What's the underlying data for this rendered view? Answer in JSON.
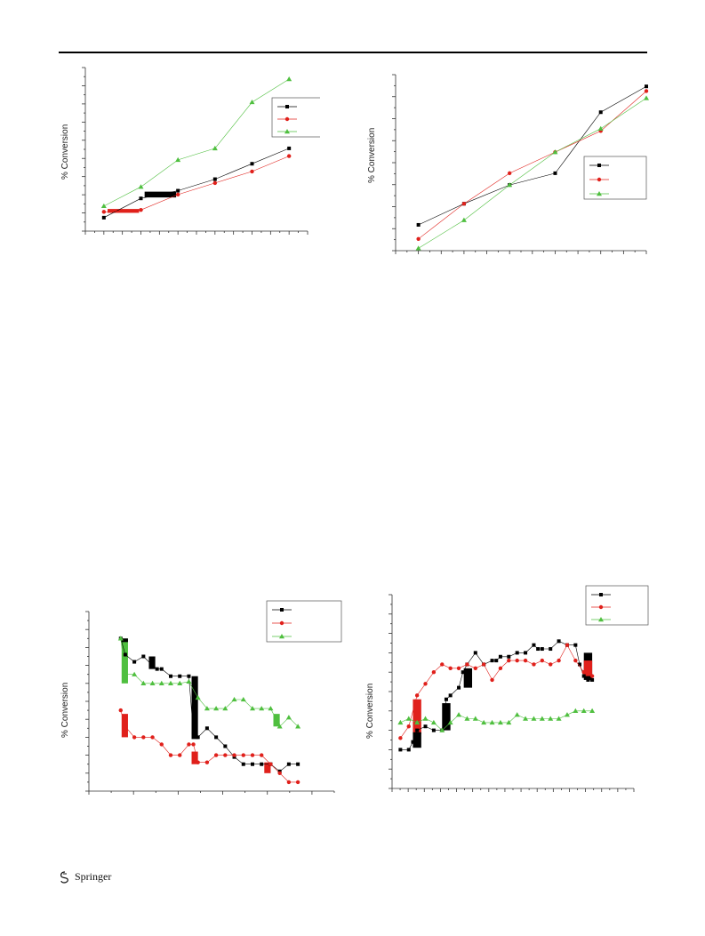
{
  "footer": {
    "publisher": "Springer"
  },
  "chart_data": [
    {
      "type": "line",
      "ylabel": "% Conversion",
      "legend": "top-right",
      "xlim": [
        0,
        6
      ],
      "ylim": [
        0,
        8.5
      ],
      "series": [
        {
          "name": "",
          "color": "#000000",
          "marker": "square",
          "x": [
            0.5,
            1.5,
            2.5,
            3.5,
            4.5,
            5.5
          ],
          "y": [
            0.7,
            1.7,
            2.1,
            2.7,
            3.5,
            4.3
          ]
        },
        {
          "name": "",
          "color": "#e0201b",
          "marker": "circle",
          "x": [
            0.5,
            1.5,
            2.5,
            3.5,
            4.5,
            5.5
          ],
          "y": [
            1.0,
            1.1,
            1.9,
            2.5,
            3.1,
            3.9
          ]
        },
        {
          "name": "",
          "color": "#4fbf3f",
          "marker": "triangle",
          "x": [
            0.5,
            1.5,
            2.5,
            3.5,
            4.5,
            5.5
          ],
          "y": [
            1.3,
            2.3,
            3.7,
            4.3,
            6.7,
            7.9
          ]
        }
      ],
      "bands": [
        {
          "color": "#000000",
          "x0": 1.6,
          "x1": 2.45,
          "y0": 1.75,
          "y1": 2.05
        },
        {
          "color": "#e0201b",
          "x0": 0.6,
          "x1": 1.45,
          "y0": 0.95,
          "y1": 1.15
        }
      ]
    },
    {
      "type": "line",
      "ylabel": "% Conversion",
      "legend": "right",
      "xlim": [
        0,
        5.5
      ],
      "ylim": [
        0,
        7.5
      ],
      "series": [
        {
          "name": "",
          "color": "#000000",
          "marker": "square",
          "x": [
            0.5,
            1.5,
            2.5,
            3.5,
            4.5,
            5.5
          ],
          "y": [
            1.1,
            2.0,
            2.8,
            3.3,
            5.9,
            7.0
          ]
        },
        {
          "name": "",
          "color": "#e0201b",
          "marker": "circle",
          "x": [
            0.5,
            1.5,
            2.5,
            3.5,
            4.5,
            5.5
          ],
          "y": [
            0.5,
            2.0,
            3.3,
            4.2,
            5.1,
            6.8
          ]
        },
        {
          "name": "",
          "color": "#4fbf3f",
          "marker": "triangle",
          "x": [
            0.5,
            1.5,
            2.5,
            3.5,
            4.5,
            5.5
          ],
          "y": [
            0.1,
            1.3,
            2.8,
            4.2,
            5.2,
            6.5
          ]
        }
      ],
      "bands": []
    },
    {
      "type": "line",
      "ylabel": "% Conversion",
      "legend": "top-right",
      "xlim": [
        0,
        27
      ],
      "ylim": [
        0,
        10
      ],
      "series": [
        {
          "name": "",
          "color": "#000000",
          "marker": "square",
          "x": [
            3.5,
            4,
            5,
            6,
            7,
            7.5,
            8,
            9,
            10,
            11,
            11.5,
            12,
            13,
            14,
            15,
            16,
            17,
            18,
            19,
            20,
            21,
            22,
            23
          ],
          "y": [
            8.5,
            7.6,
            7.2,
            7.5,
            7.0,
            6.8,
            6.8,
            6.4,
            6.4,
            6.4,
            3.2,
            3.0,
            3.5,
            3.0,
            2.5,
            1.9,
            1.5,
            1.5,
            1.5,
            1.5,
            1.1,
            1.5,
            1.5
          ]
        },
        {
          "name": "",
          "color": "#e0201b",
          "marker": "circle",
          "x": [
            3.5,
            4,
            5,
            6,
            7,
            8,
            9,
            10,
            11,
            11.5,
            12,
            13,
            14,
            15,
            16,
            17,
            18,
            19,
            20,
            21,
            22,
            23
          ],
          "y": [
            4.5,
            3.6,
            3.0,
            3.0,
            3.0,
            2.6,
            2.0,
            2.0,
            2.6,
            2.6,
            1.6,
            1.6,
            2.0,
            2.0,
            2.0,
            2.0,
            2.0,
            2.0,
            1.5,
            1.0,
            0.5,
            0.5
          ]
        },
        {
          "name": "",
          "color": "#4fbf3f",
          "marker": "triangle",
          "x": [
            3.5,
            4,
            5,
            6,
            7,
            8,
            9,
            10,
            11,
            12,
            13,
            14,
            15,
            16,
            17,
            18,
            19,
            20,
            21,
            22,
            23
          ],
          "y": [
            8.5,
            6.5,
            6.5,
            6.0,
            6.0,
            6.0,
            6.0,
            6.0,
            6.1,
            5.2,
            4.6,
            4.6,
            4.6,
            5.1,
            5.1,
            4.6,
            4.6,
            4.6,
            3.6,
            4.1,
            3.6
          ]
        }
      ],
      "bands": [
        {
          "color": "#4fbf3f",
          "x0": 3.6,
          "x1": 4.3,
          "y0": 6.0,
          "y1": 8.5
        },
        {
          "color": "#000000",
          "x0": 3.6,
          "x1": 4.3,
          "y0": 8.3,
          "y1": 8.5
        },
        {
          "color": "#000000",
          "x0": 6.6,
          "x1": 7.3,
          "y0": 6.8,
          "y1": 7.5
        },
        {
          "color": "#000000",
          "x0": 11.3,
          "x1": 12.0,
          "y0": 2.9,
          "y1": 6.4
        },
        {
          "color": "#e0201b",
          "x0": 3.6,
          "x1": 4.3,
          "y0": 3.0,
          "y1": 4.3
        },
        {
          "color": "#e0201b",
          "x0": 11.3,
          "x1": 12.0,
          "y0": 1.5,
          "y1": 2.2
        },
        {
          "color": "#e0201b",
          "x0": 19.3,
          "x1": 20.0,
          "y0": 1.0,
          "y1": 1.6
        },
        {
          "color": "#4fbf3f",
          "x0": 20.3,
          "x1": 21.0,
          "y0": 3.6,
          "y1": 4.3
        }
      ]
    },
    {
      "type": "line",
      "ylabel": "% Conversion",
      "legend": "top-right",
      "xlim": [
        0,
        29
      ],
      "ylim": [
        0,
        5
      ],
      "series": [
        {
          "name": "",
          "color": "#000000",
          "marker": "square",
          "x": [
            1,
            2,
            2.5,
            3,
            4,
            5,
            6,
            6.5,
            7,
            8,
            8.5,
            9,
            10,
            11,
            12,
            12.5,
            13,
            14,
            15,
            16,
            17,
            17.5,
            18,
            19,
            20,
            21,
            22,
            22.5,
            23,
            23.5,
            24
          ],
          "y": [
            1.0,
            1.0,
            1.2,
            1.5,
            1.6,
            1.5,
            1.5,
            2.3,
            2.4,
            2.6,
            3.0,
            3.2,
            3.5,
            3.2,
            3.3,
            3.3,
            3.4,
            3.4,
            3.5,
            3.5,
            3.7,
            3.6,
            3.6,
            3.6,
            3.8,
            3.7,
            3.7,
            3.2,
            2.9,
            2.8,
            2.8
          ]
        },
        {
          "name": "",
          "color": "#e0201b",
          "marker": "circle",
          "x": [
            1,
            2,
            3,
            4,
            5,
            6,
            7,
            8,
            9,
            10,
            11,
            12,
            13,
            14,
            15,
            16,
            17,
            18,
            19,
            20,
            21,
            22,
            23,
            24
          ],
          "y": [
            1.3,
            1.6,
            2.4,
            2.7,
            3.0,
            3.2,
            3.1,
            3.1,
            3.2,
            3.1,
            3.2,
            2.8,
            3.1,
            3.3,
            3.3,
            3.3,
            3.2,
            3.3,
            3.2,
            3.3,
            3.7,
            3.3,
            3.0,
            2.9
          ]
        },
        {
          "name": "",
          "color": "#4fbf3f",
          "marker": "triangle",
          "x": [
            1,
            2,
            3,
            4,
            5,
            6,
            7,
            8,
            9,
            10,
            11,
            12,
            13,
            14,
            15,
            16,
            17,
            18,
            19,
            20,
            21,
            22,
            23,
            24
          ],
          "y": [
            1.7,
            1.8,
            1.7,
            1.8,
            1.7,
            1.5,
            1.7,
            1.9,
            1.8,
            1.8,
            1.7,
            1.7,
            1.7,
            1.7,
            1.9,
            1.8,
            1.8,
            1.8,
            1.8,
            1.8,
            1.9,
            2.0,
            2.0,
            2.0
          ]
        }
      ],
      "bands": [
        {
          "color": "#e0201b",
          "x0": 2.5,
          "x1": 3.5,
          "y0": 1.4,
          "y1": 2.3
        },
        {
          "color": "#000000",
          "x0": 2.5,
          "x1": 3.5,
          "y0": 1.05,
          "y1": 1.45
        },
        {
          "color": "#000000",
          "x0": 6.0,
          "x1": 7.0,
          "y0": 1.5,
          "y1": 2.2
        },
        {
          "color": "#000000",
          "x0": 8.6,
          "x1": 9.6,
          "y0": 2.6,
          "y1": 3.1
        },
        {
          "color": "#000000",
          "x0": 23.0,
          "x1": 24.0,
          "y0": 2.8,
          "y1": 3.5
        },
        {
          "color": "#e0201b",
          "x0": 23.0,
          "x1": 24.0,
          "y0": 2.9,
          "y1": 3.3
        }
      ]
    }
  ]
}
